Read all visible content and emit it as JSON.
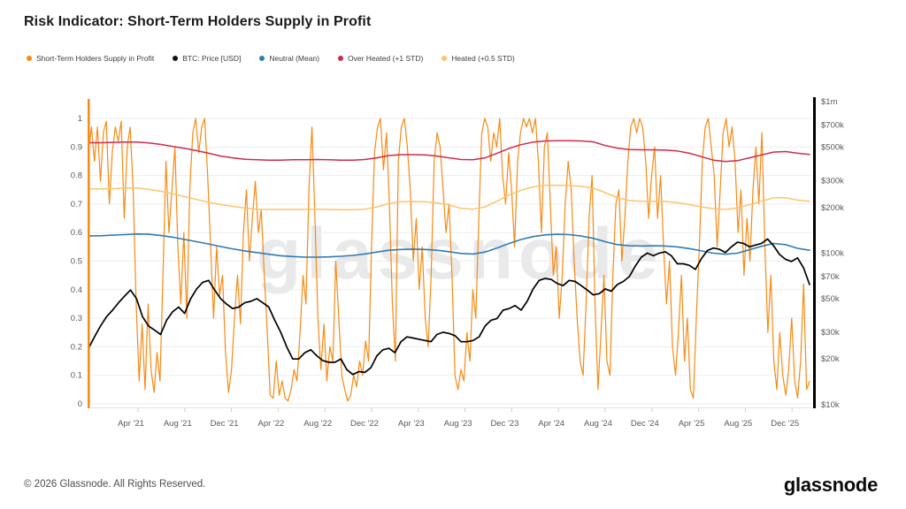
{
  "header": {
    "title": "Risk Indicator: Short-Term Holders Supply in Profit"
  },
  "legend": {
    "items": [
      {
        "label": "Short-Term Holders Supply in Profit",
        "color": "#f78a14"
      },
      {
        "label": "BTC: Price [USD]",
        "color": "#111111"
      },
      {
        "label": "Neutral (Mean)",
        "color": "#2e7bb5"
      },
      {
        "label": "Over Heated (+1 STD)",
        "color": "#cf2a4c"
      },
      {
        "label": "Heated (+0.5 STD)",
        "color": "#fcc46a"
      }
    ]
  },
  "watermark": "glassnode",
  "footer": {
    "copyright": "© 2026 Glassnode. All Rights Reserved.",
    "logo": "glassnode"
  },
  "chart_data": {
    "type": "line",
    "title": "Risk Indicator: Short-Term Holders Supply in Profit",
    "x_axis": {
      "labels": [
        "Apr '21",
        "Aug '21",
        "Dec '21",
        "Apr '22",
        "Aug '22",
        "Dec '22",
        "Apr '23",
        "Aug '23",
        "Dec '23",
        "Apr '24",
        "Aug '24",
        "Dec '24",
        "Apr '25",
        "Aug '25",
        "Dec '25"
      ],
      "coverage": "uniform samples across visible range, late Jan 2021 to mid Jan 2026",
      "grid": false
    },
    "left_axis": {
      "ticks": [
        1,
        0.9,
        0.8,
        0.7,
        0.6,
        0.5,
        0.4,
        0.3,
        0.2,
        0.1,
        0
      ],
      "range": [
        0,
        1
      ],
      "scale": "linear",
      "grid": true,
      "axis_color": "#f78a14"
    },
    "right_axis": {
      "scale": "log",
      "grid": false,
      "axis_color": "#000000",
      "ticks": [
        {
          "label": "$1m",
          "value": 1000000
        },
        {
          "label": "$700k",
          "value": 700000
        },
        {
          "label": "$500k",
          "value": 500000
        },
        {
          "label": "$300k",
          "value": 300000
        },
        {
          "label": "$200k",
          "value": 200000
        },
        {
          "label": "$100k",
          "value": 100000
        },
        {
          "label": "$70k",
          "value": 70000
        },
        {
          "label": "$50k",
          "value": 50000
        },
        {
          "label": "$30k",
          "value": 30000
        },
        {
          "label": "$20k",
          "value": 20000
        },
        {
          "label": "$10k",
          "value": 10000
        }
      ]
    },
    "series": [
      {
        "name": "Short-Term Holders Supply in Profit",
        "axis": "left",
        "color": "#f78a14",
        "values": [
          0.88,
          0.97,
          0.85,
          0.97,
          0.78,
          0.95,
          0.99,
          0.7,
          0.88,
          0.97,
          0.92,
          0.99,
          0.65,
          0.9,
          0.97,
          0.75,
          0.35,
          0.08,
          0.28,
          0.05,
          0.35,
          0.12,
          0.04,
          0.18,
          0.08,
          0.45,
          0.85,
          0.6,
          0.75,
          0.9,
          0.55,
          0.35,
          0.6,
          0.3,
          0.75,
          0.95,
          1.0,
          0.88,
          0.97,
          1.0,
          0.8,
          0.55,
          0.3,
          0.55,
          0.38,
          0.45,
          0.18,
          0.04,
          0.12,
          0.3,
          0.45,
          0.28,
          0.6,
          0.75,
          0.5,
          0.65,
          0.78,
          0.6,
          0.68,
          0.45,
          0.25,
          0.03,
          0.02,
          0.15,
          0.03,
          0.08,
          0.02,
          0.01,
          0.05,
          0.12,
          0.08,
          0.25,
          0.45,
          0.35,
          0.75,
          0.97,
          0.65,
          0.3,
          0.12,
          0.28,
          0.08,
          0.2,
          0.15,
          0.5,
          0.3,
          0.1,
          0.05,
          0.01,
          0.03,
          0.1,
          0.06,
          0.15,
          0.1,
          0.22,
          0.15,
          0.55,
          0.88,
          0.97,
          1.0,
          0.82,
          0.95,
          0.7,
          0.35,
          0.15,
          0.85,
          0.97,
          1.0,
          0.9,
          0.75,
          0.5,
          0.65,
          0.4,
          0.55,
          0.3,
          0.2,
          0.45,
          0.85,
          0.95,
          0.9,
          0.75,
          0.6,
          0.7,
          0.45,
          0.1,
          0.05,
          0.12,
          0.08,
          0.25,
          0.15,
          0.4,
          0.3,
          0.65,
          0.95,
          1.0,
          0.97,
          0.85,
          0.95,
          0.9,
          1.0,
          0.8,
          0.7,
          0.88,
          0.75,
          0.55,
          0.85,
          0.95,
          1.0,
          0.97,
          1.0,
          0.95,
          1.0,
          0.85,
          0.6,
          0.9,
          0.95,
          0.7,
          0.45,
          0.55,
          0.3,
          0.45,
          0.7,
          0.85,
          0.75,
          0.5,
          0.3,
          0.15,
          0.1,
          0.35,
          0.65,
          0.8,
          0.35,
          0.05,
          0.25,
          0.45,
          0.15,
          0.1,
          0.45,
          0.7,
          0.75,
          0.5,
          0.65,
          0.85,
          0.97,
          1.0,
          0.95,
          1.0,
          0.97,
          0.85,
          0.65,
          0.8,
          0.9,
          0.65,
          0.8,
          0.55,
          0.35,
          0.5,
          0.2,
          0.1,
          0.25,
          0.45,
          0.15,
          0.3,
          0.05,
          0.02,
          0.3,
          0.55,
          0.85,
          0.97,
          1.0,
          0.9,
          0.8,
          0.55,
          0.75,
          0.95,
          1.0,
          0.9,
          0.97,
          0.85,
          0.6,
          0.75,
          0.45,
          0.65,
          0.5,
          0.75,
          0.9,
          0.7,
          0.95,
          0.55,
          0.25,
          0.45,
          0.15,
          0.05,
          0.25,
          0.1,
          0.03,
          0.12,
          0.3,
          0.08,
          0.02,
          0.15,
          0.42,
          0.05,
          0.08
        ]
      },
      {
        "name": "Heated (+0.5 STD)",
        "axis": "left",
        "color": "#fcc46a",
        "values": [
          0.753,
          0.753,
          0.754,
          0.756,
          0.756,
          0.752,
          0.745,
          0.736,
          0.726,
          0.716,
          0.706,
          0.698,
          0.692,
          0.686,
          0.682,
          0.681,
          0.681,
          0.681,
          0.681,
          0.682,
          0.681,
          0.68,
          0.68,
          0.682,
          0.69,
          0.702,
          0.708,
          0.709,
          0.708,
          0.704,
          0.697,
          0.685,
          0.682,
          0.69,
          0.71,
          0.732,
          0.748,
          0.76,
          0.766,
          0.766,
          0.765,
          0.762,
          0.756,
          0.74,
          0.722,
          0.712,
          0.71,
          0.71,
          0.709,
          0.705,
          0.698,
          0.69,
          0.684,
          0.681,
          0.686,
          0.698,
          0.71,
          0.722,
          0.722,
          0.714,
          0.71
        ]
      },
      {
        "name": "Over Heated (+1 STD)",
        "axis": "left",
        "color": "#cf2a4c",
        "values": [
          0.915,
          0.915,
          0.916,
          0.917,
          0.917,
          0.914,
          0.909,
          0.902,
          0.895,
          0.887,
          0.878,
          0.868,
          0.862,
          0.857,
          0.855,
          0.854,
          0.854,
          0.855,
          0.855,
          0.856,
          0.855,
          0.854,
          0.854,
          0.856,
          0.862,
          0.87,
          0.873,
          0.873,
          0.872,
          0.868,
          0.862,
          0.856,
          0.855,
          0.862,
          0.878,
          0.895,
          0.908,
          0.917,
          0.921,
          0.922,
          0.922,
          0.921,
          0.918,
          0.905,
          0.896,
          0.891,
          0.89,
          0.89,
          0.889,
          0.886,
          0.878,
          0.866,
          0.854,
          0.849,
          0.852,
          0.862,
          0.872,
          0.882,
          0.884,
          0.878,
          0.874
        ]
      },
      {
        "name": "Neutral (Mean)",
        "axis": "left",
        "color": "#2e7bb5",
        "values": [
          0.588,
          0.589,
          0.591,
          0.593,
          0.595,
          0.594,
          0.59,
          0.584,
          0.576,
          0.568,
          0.56,
          0.551,
          0.543,
          0.536,
          0.53,
          0.524,
          0.519,
          0.516,
          0.514,
          0.514,
          0.515,
          0.517,
          0.52,
          0.525,
          0.532,
          0.538,
          0.541,
          0.542,
          0.541,
          0.538,
          0.533,
          0.527,
          0.525,
          0.532,
          0.546,
          0.562,
          0.576,
          0.586,
          0.592,
          0.594,
          0.593,
          0.588,
          0.58,
          0.568,
          0.558,
          0.554,
          0.553,
          0.554,
          0.553,
          0.55,
          0.544,
          0.536,
          0.528,
          0.524,
          0.528,
          0.54,
          0.552,
          0.562,
          0.558,
          0.545,
          0.538
        ]
      },
      {
        "name": "BTC: Price [USD]",
        "axis": "right",
        "unit": "USD thousands",
        "color": "#000000",
        "values": [
          23.5,
          28,
          33,
          38,
          42,
          47,
          52,
          57,
          50,
          38,
          33,
          31,
          29,
          36,
          41,
          44,
          40,
          50,
          58,
          64,
          66,
          57,
          50,
          46,
          43,
          44,
          47,
          48,
          50,
          47,
          44,
          36,
          30,
          24,
          20,
          20,
          22,
          23,
          21,
          19.5,
          19,
          19,
          20,
          17,
          15.8,
          16.5,
          16.3,
          17.5,
          21,
          23,
          23.5,
          22,
          26,
          28,
          27.5,
          27,
          26.5,
          26,
          29,
          30,
          29.5,
          28.5,
          26,
          26,
          26.5,
          28,
          33,
          36,
          37,
          42,
          43,
          45,
          42,
          48,
          58,
          66,
          68,
          67,
          63,
          61,
          66,
          65,
          61,
          57,
          53,
          54,
          58,
          56,
          62,
          65,
          70,
          82,
          94,
          100,
          96,
          100,
          102,
          96,
          85,
          85,
          83,
          78,
          92,
          104,
          108,
          106,
          101,
          110,
          118,
          116,
          110,
          113,
          116,
          124,
          112,
          98,
          91,
          88,
          93,
          80,
          62
        ]
      }
    ]
  }
}
